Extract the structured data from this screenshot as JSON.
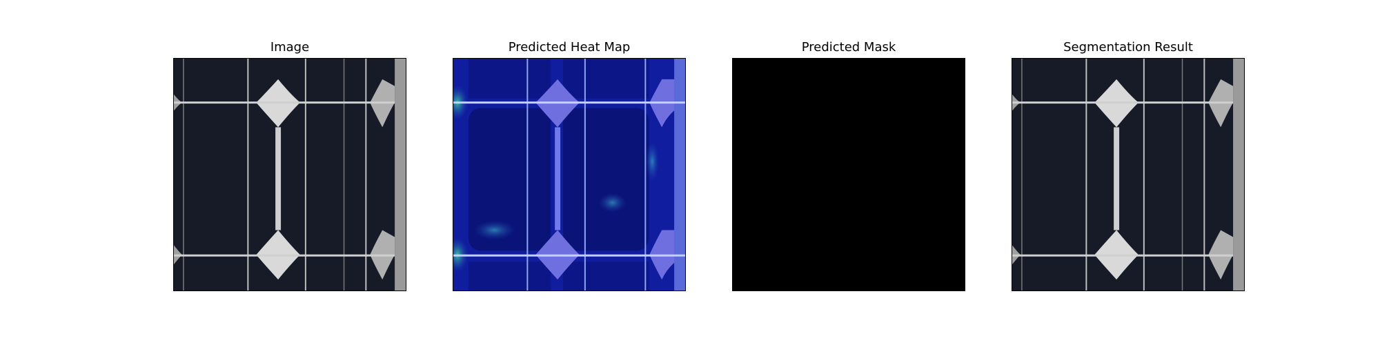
{
  "figure": {
    "panels": [
      {
        "title": "Image"
      },
      {
        "title": "Predicted Heat Map"
      },
      {
        "title": "Predicted Mask"
      },
      {
        "title": "Segmentation Result"
      }
    ]
  },
  "colors": {
    "cell_dark": "#141824",
    "busbar": "#c8c8c8",
    "corner_gap": "#d8d8d8",
    "heatmap_base": "#0c1a9a",
    "heatmap_hot": "#36c7a0",
    "mask": "#000000"
  }
}
